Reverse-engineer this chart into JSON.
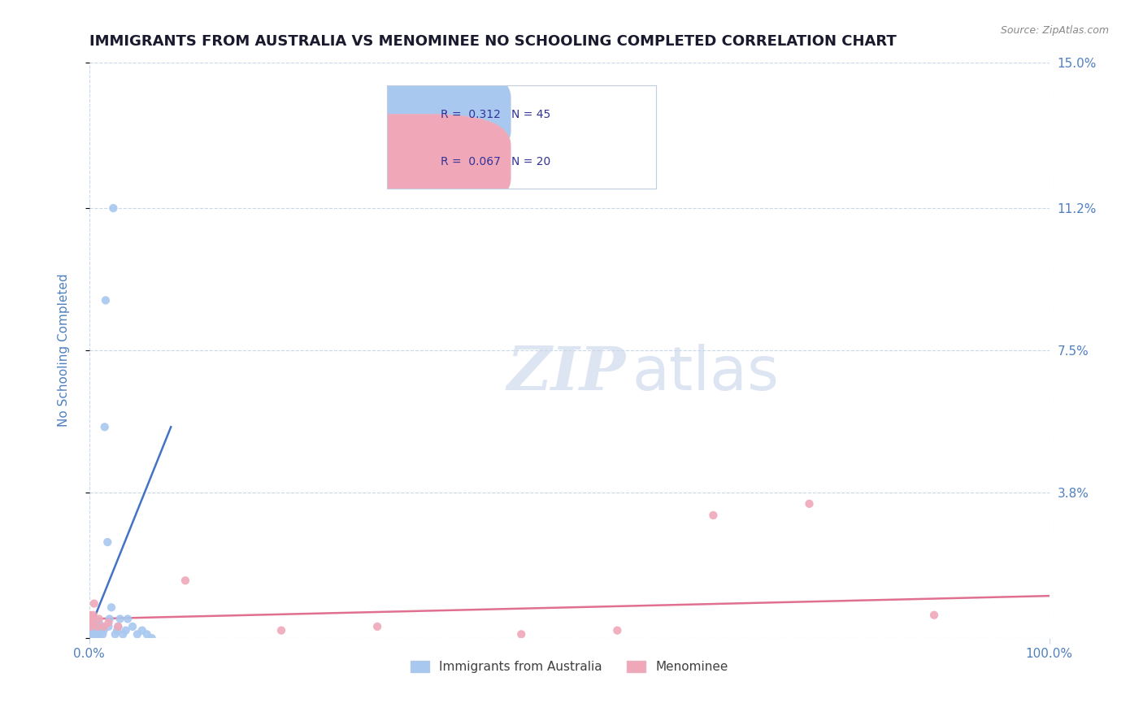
{
  "title": "IMMIGRANTS FROM AUSTRALIA VS MENOMINEE NO SCHOOLING COMPLETED CORRELATION CHART",
  "source_text": "Source: ZipAtlas.com",
  "ylabel": "No Schooling Completed",
  "watermark_zip": "ZIP",
  "watermark_atlas": "atlas",
  "legend1_r": "0.312",
  "legend1_n": "45",
  "legend2_r": "0.067",
  "legend2_n": "20",
  "legend_bottom_label1": "Immigrants from Australia",
  "legend_bottom_label2": "Menominee",
  "blue_color": "#a8c8f0",
  "pink_color": "#f0a8b8",
  "blue_line_color": "#4472c4",
  "pink_line_color": "#e07090",
  "title_color": "#1a1a2e",
  "tick_color": "#5080c0",
  "grid_color": "#c8d8e8",
  "background_color": "#ffffff",
  "xmin": 0.0,
  "xmax": 100.0,
  "ymin": 0.0,
  "ymax": 15.0,
  "yticks": [
    0.0,
    3.8,
    7.5,
    11.2,
    15.0
  ],
  "ytick_labels": [
    "",
    "3.8%",
    "7.5%",
    "11.2%",
    "15.0%"
  ],
  "xticks": [
    0.0,
    100.0
  ],
  "xtick_labels": [
    "0.0%",
    "100.0%"
  ],
  "blue_scatter_x": [
    0.0,
    0.0,
    0.0,
    0.05,
    0.05,
    0.1,
    0.1,
    0.15,
    0.2,
    0.2,
    0.3,
    0.3,
    0.4,
    0.4,
    0.5,
    0.5,
    0.6,
    0.7,
    0.8,
    0.9,
    1.0,
    1.1,
    1.2,
    1.3,
    1.4,
    1.5,
    1.6,
    1.7,
    1.9,
    2.0,
    2.1,
    2.3,
    2.5,
    2.7,
    2.9,
    3.0,
    3.2,
    3.5,
    3.8,
    4.0,
    4.5,
    5.0,
    5.5,
    6.0,
    6.5
  ],
  "blue_scatter_y": [
    0.05,
    0.1,
    0.15,
    0.1,
    0.2,
    0.1,
    0.2,
    0.3,
    0.1,
    0.2,
    0.1,
    0.3,
    0.1,
    0.2,
    0.3,
    0.5,
    0.1,
    0.2,
    0.1,
    0.3,
    0.4,
    0.0,
    0.2,
    0.3,
    0.1,
    0.2,
    5.5,
    8.8,
    2.5,
    0.3,
    0.5,
    0.8,
    11.2,
    0.1,
    0.2,
    0.3,
    0.5,
    0.1,
    0.2,
    0.5,
    0.3,
    0.1,
    0.2,
    0.1,
    0.0
  ],
  "pink_scatter_x": [
    0.0,
    0.05,
    0.1,
    0.2,
    0.3,
    0.4,
    0.5,
    0.8,
    1.0,
    1.5,
    2.0,
    3.0,
    10.0,
    20.0,
    30.0,
    45.0,
    55.0,
    65.0,
    75.0,
    88.0
  ],
  "pink_scatter_y": [
    0.4,
    0.6,
    0.3,
    0.5,
    0.4,
    0.6,
    0.9,
    0.3,
    0.5,
    0.3,
    0.4,
    0.3,
    1.5,
    0.2,
    0.3,
    0.1,
    0.2,
    3.2,
    3.5,
    0.6
  ],
  "blue_line_x": [
    0.0,
    8.5
  ],
  "blue_line_y": [
    0.2,
    5.5
  ],
  "pink_line_x": [
    0.0,
    100.0
  ],
  "pink_line_y": [
    0.5,
    1.1
  ]
}
